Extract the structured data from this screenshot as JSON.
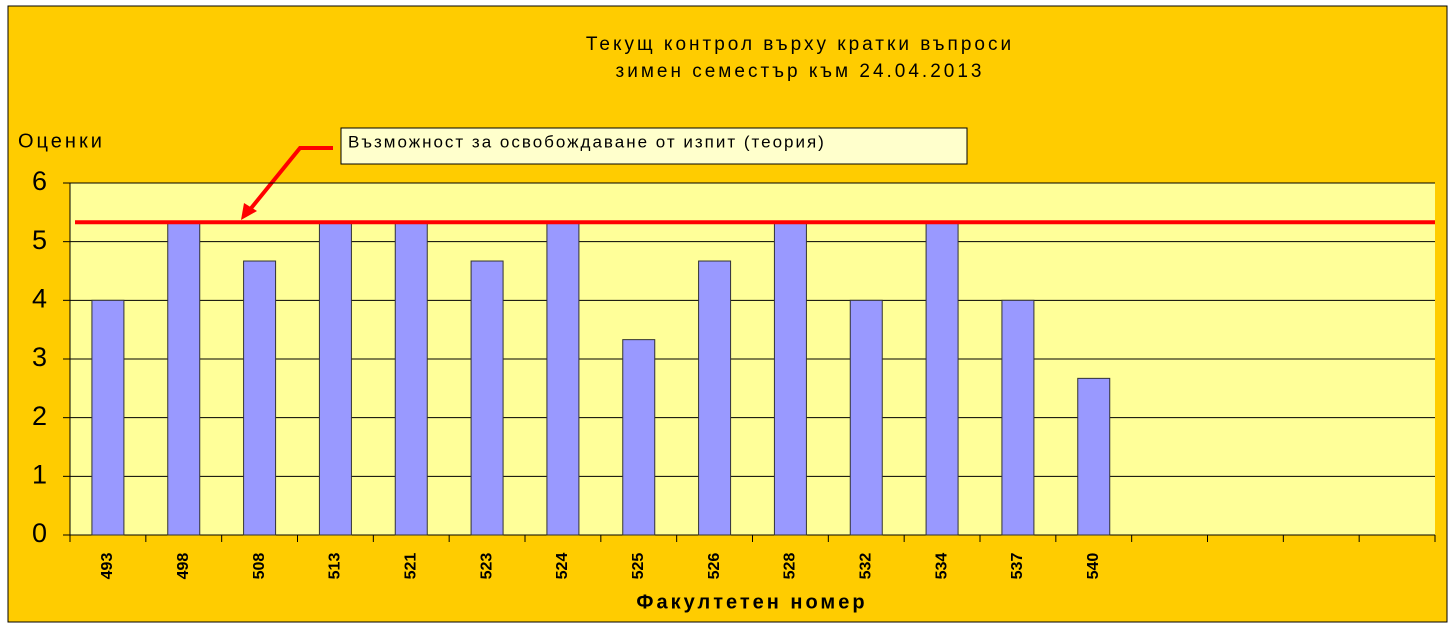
{
  "chart_data": {
    "type": "bar",
    "title": "Текущ контрол върху кратки въпроси",
    "subtitle": "зимен семестър към 24.04.2013",
    "y_label": "Оценки",
    "x_label": "Факултетен номер",
    "annotation": "Възможност за освобождаване от изпит (теория)",
    "categories": [
      "493",
      "498",
      "508",
      "513",
      "521",
      "523",
      "524",
      "525",
      "526",
      "528",
      "532",
      "534",
      "537",
      "540",
      null,
      null,
      null,
      null
    ],
    "values": [
      4.0,
      5.33,
      4.67,
      5.33,
      5.33,
      4.67,
      5.33,
      3.33,
      4.67,
      5.33,
      4.0,
      5.33,
      4.0,
      2.67,
      null,
      null,
      null,
      null
    ],
    "color": "#9999ff",
    "threshold": 5.33,
    "threshold_color": "#ff0000",
    "ylim": [
      0,
      6
    ],
    "yticks": [
      0,
      1,
      2,
      3,
      4,
      5,
      6
    ],
    "grid": true
  }
}
